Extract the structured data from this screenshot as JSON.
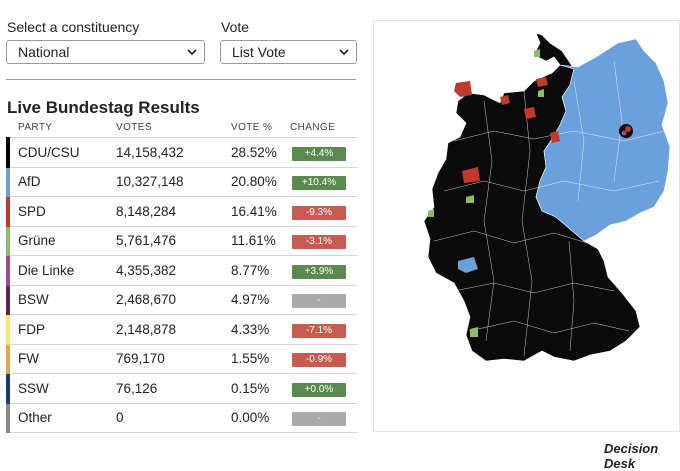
{
  "controls": {
    "constituency_label": "Select a constituency",
    "constituency_value": "National",
    "vote_label": "Vote",
    "vote_value": "List Vote"
  },
  "title": "Live Bundestag Results",
  "columns": {
    "party": "PARTY",
    "votes": "VOTES",
    "pct": "VOTE %",
    "change": "CHANGE"
  },
  "rows": [
    {
      "party": "CDU/CSU",
      "votes": "14,158,432",
      "pct": "28.52%",
      "change": "+4.4%",
      "color": "#000000",
      "change_color": "#5a8a4e"
    },
    {
      "party": "AfD",
      "votes": "10,327,148",
      "pct": "20.80%",
      "change": "+10.4%",
      "color": "#6aa0dc",
      "change_color": "#5a8a4e"
    },
    {
      "party": "SPD",
      "votes": "8,148,284",
      "pct": "16.41%",
      "change": "-9.3%",
      "color": "#c0392b",
      "change_color": "#c95a4f"
    },
    {
      "party": "Grüne",
      "votes": "5,761,476",
      "pct": "11.61%",
      "change": "-3.1%",
      "color": "#8dbb6a",
      "change_color": "#c95a4f"
    },
    {
      "party": "Die Linke",
      "votes": "4,355,382",
      "pct": "8.77%",
      "change": "+3.9%",
      "color": "#a04a8c",
      "change_color": "#5a8a4e"
    },
    {
      "party": "BSW",
      "votes": "2,468,670",
      "pct": "4.97%",
      "change": "-",
      "color": "#5c2a4d",
      "change_color": "#a9a9a9"
    },
    {
      "party": "FDP",
      "votes": "2,148,878",
      "pct": "4.33%",
      "change": "-7.1%",
      "color": "#f4e86a",
      "change_color": "#c95a4f"
    },
    {
      "party": "FW",
      "votes": "769,170",
      "pct": "1.55%",
      "change": "-0.9%",
      "color": "#e3a64a",
      "change_color": "#c95a4f"
    },
    {
      "party": "SSW",
      "votes": "76,126",
      "pct": "0.15%",
      "change": "+0.0%",
      "color": "#1f3b73",
      "change_color": "#5a8a4e"
    },
    {
      "party": "Other",
      "votes": "0",
      "pct": "0.00%",
      "change": "-",
      "color": "#8a8a8a",
      "change_color": "#a9a9a9"
    }
  ],
  "map": {
    "colors": {
      "cdu": "#0b0b0b",
      "afd": "#6aa0dc",
      "spd": "#c0392b",
      "gruene": "#8dbb6a"
    }
  },
  "brand": "Decision Desk"
}
